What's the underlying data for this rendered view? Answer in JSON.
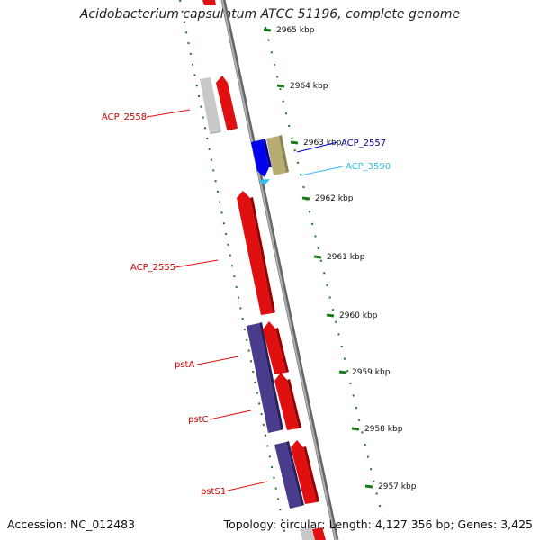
{
  "title": "Acidobacterium capsulatum ATCC 51196, complete genome",
  "footer": {
    "accession": "Accession: NC_012483",
    "summary": "Topology: circular; Length: 4,127,356 bp; Genes: 3,425"
  },
  "scale_labels": [
    "2965 kbp",
    "2964 kbp",
    "2963 kbp",
    "2962 kbp",
    "2961 kbp",
    "2960 kbp",
    "2959 kbp",
    "2958 kbp",
    "2957 kbp"
  ],
  "gene_labels": [
    "ACP_2558",
    "ACP_2557",
    "ACP_3590",
    "ACP_2555",
    "pstA",
    "pstC",
    "pstS1"
  ],
  "colors": {
    "forward_cds": "#e01010",
    "reverse_cds": "#0000ee",
    "pseudo": "#c8c8c8",
    "pst_cds": "#4a3c8c",
    "other": "#b8ad70",
    "rna": "#33bbee",
    "backbone": "#888888",
    "tick": "#1a7a1a"
  }
}
